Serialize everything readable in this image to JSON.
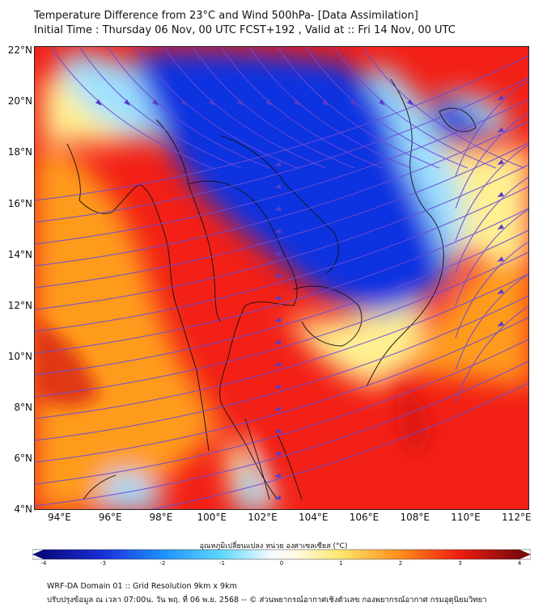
{
  "title": {
    "line1": "Temperature Difference from 23°C and Wind 500hPa- [Data Assimilation]",
    "line2": "Initial Time : Thursday 06 Nov, 00 UTC FCST+192 , Valid at ::  Fri 14 Nov, 00 UTC"
  },
  "map": {
    "lat_labels": [
      "22°N",
      "20°N",
      "18°N",
      "16°N",
      "14°N",
      "12°N",
      "10°N",
      "8°N",
      "6°N",
      "4°N"
    ],
    "lat_values": [
      22,
      20,
      18,
      16,
      14,
      12,
      10,
      8,
      6,
      4
    ],
    "lon_labels": [
      "94°E",
      "96°E",
      "98°E",
      "100°E",
      "102°E",
      "104°E",
      "106°E",
      "108°E",
      "110°E",
      "112°E"
    ],
    "lon_values": [
      94,
      96,
      98,
      100,
      102,
      104,
      106,
      108,
      110,
      112
    ],
    "lon_range": [
      93.0,
      112.5
    ],
    "lat_range": [
      4.0,
      22.2
    ],
    "field": "temperature-difference",
    "wind_field": "streamlines",
    "colors": {
      "blue": "#1030e0",
      "light_blue": "#9ee0ff",
      "yellow": "#fff090",
      "orange": "#ff9b1e",
      "red": "#f22016",
      "streamline": "#6a4cd6",
      "border": "#111111"
    }
  },
  "colorbar": {
    "title": "อุณหภูมิเปลี่ยนแปลง หน่วย องศาเซลเซียส (°C)",
    "tick_labels": [
      "-4",
      "-3",
      "-2",
      "-1",
      "0",
      "1",
      "2",
      "3",
      "4"
    ],
    "tick_values": [
      -4,
      -3,
      -2,
      -1,
      0,
      1,
      2,
      3,
      4
    ],
    "range": [
      -4,
      4
    ],
    "extend": "both",
    "stops": [
      {
        "v": -4,
        "c": "#0a0a80"
      },
      {
        "v": -3,
        "c": "#1a2fd8"
      },
      {
        "v": -2,
        "c": "#1e90ff"
      },
      {
        "v": -1,
        "c": "#5fd8ff"
      },
      {
        "v": -0.2,
        "c": "#f2f9ff"
      },
      {
        "v": 0.2,
        "c": "#fffbe6"
      },
      {
        "v": 1,
        "c": "#ffe66b"
      },
      {
        "v": 2,
        "c": "#ff8c1a"
      },
      {
        "v": 3,
        "c": "#ee1c12"
      },
      {
        "v": 4,
        "c": "#7a0a0a"
      }
    ]
  },
  "footer": {
    "line1": "WRF-DA Domain 01 :: Grid Resolution 9km x 9km",
    "line2": "ปรับปรุงข้อมูล ณ เวลา 07:00น. วัน พฤ. ที่ 06 พ.ย. 2568 -- © ส่วนพยากรณ์อากาศเชิงตัวเลข กองพยากรณ์อากาศ กรมอุตุนิยมวิทยา"
  }
}
